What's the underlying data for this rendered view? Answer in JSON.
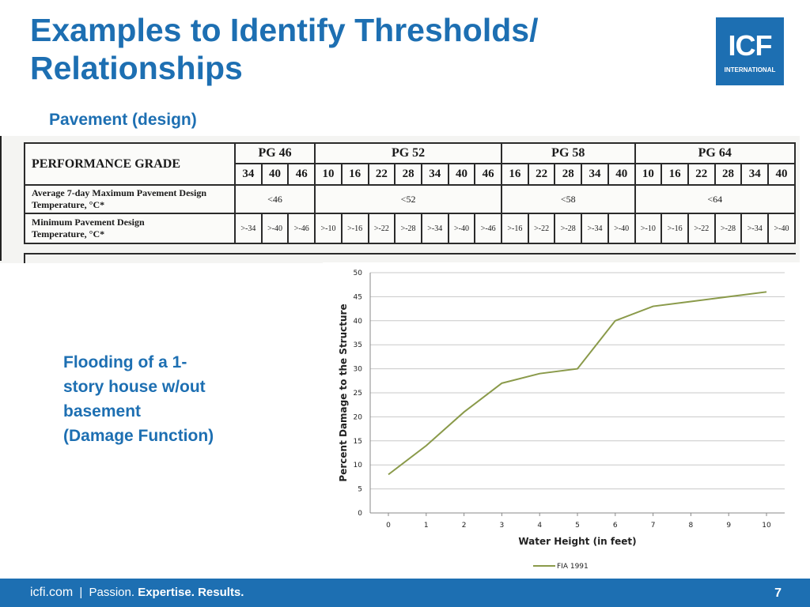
{
  "slide": {
    "title_line1": "Examples to Identify Thresholds/",
    "title_line2": "Relationships",
    "subtitle": "Pavement (design)",
    "caption_lines": [
      "Flooding of a 1-",
      "story house w/out",
      "basement",
      "(Damage Function)"
    ],
    "page_number": "7"
  },
  "logo": {
    "main": "ICF",
    "sub": "INTERNATIONAL"
  },
  "colors": {
    "brand": "#1d6fb2",
    "series": "#8a9a4a"
  },
  "table": {
    "perf_label": "PERFORMANCE GRADE",
    "groups": [
      {
        "label": "PG 46",
        "values": [
          "34",
          "40",
          "46"
        ],
        "avg": "<46",
        "mins": [
          ">-34",
          ">-40",
          ">-46"
        ]
      },
      {
        "label": "PG 52",
        "values": [
          "10",
          "16",
          "22",
          "28",
          "34",
          "40",
          "46"
        ],
        "avg": "<52",
        "mins": [
          ">-10",
          ">-16",
          ">-22",
          ">-28",
          ">-34",
          ">-40",
          ">-46"
        ]
      },
      {
        "label": "PG 58",
        "values": [
          "16",
          "22",
          "28",
          "34",
          "40"
        ],
        "avg": "<58",
        "mins": [
          ">-16",
          ">-22",
          ">-28",
          ">-34",
          ">-40"
        ]
      },
      {
        "label": "PG 64",
        "values": [
          "10",
          "16",
          "22",
          "28",
          "34",
          "40"
        ],
        "avg": "<64",
        "mins": [
          ">-10",
          ">-16",
          ">-22",
          ">-28",
          ">-34",
          ">-40"
        ]
      }
    ],
    "avg_label_1": "Average 7-day Maximum Pavement Design",
    "avg_label_2": "Temperature, °C*",
    "min_label_1": "Minimum Pavement Design",
    "min_label_2": "Temperature, °C*"
  },
  "chart_data": {
    "type": "line",
    "xlabel": "Water Height (in feet)",
    "ylabel": "Percent Damage to the Structure",
    "x": [
      0,
      1,
      2,
      3,
      4,
      5,
      6,
      7,
      8,
      9,
      10
    ],
    "xticks": [
      "0",
      "1",
      "2",
      "3",
      "4",
      "5",
      "6",
      "7",
      "8",
      "9",
      "10"
    ],
    "yticks": [
      "0",
      "5",
      "10",
      "15",
      "20",
      "25",
      "30",
      "35",
      "40",
      "45",
      "50"
    ],
    "ylim": [
      0,
      50
    ],
    "grid": "horizontal",
    "legend_position": "bottom",
    "series": [
      {
        "name": "FIA 1991",
        "values": [
          8,
          14,
          21,
          27,
          29,
          30,
          40,
          43,
          44,
          45,
          46
        ]
      }
    ]
  },
  "footer": {
    "url": "icfi.com",
    "separator": "|",
    "tag_1": "Passion.",
    "tag_2": "Expertise.",
    "tag_3": "Results."
  }
}
